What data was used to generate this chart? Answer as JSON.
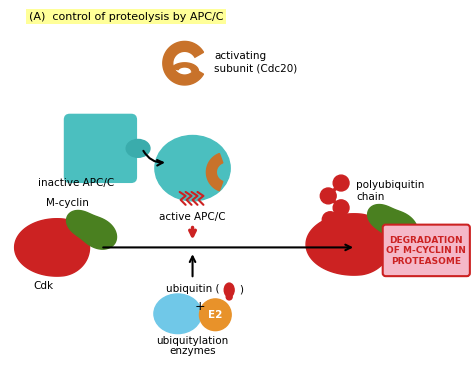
{
  "title": "(A)  control of proteolysis by APC/C",
  "title_highlight_color": "#FFFF99",
  "background_color": "#FFFFFF",
  "colors": {
    "teal": "#4BBFBF",
    "teal_dark": "#3AACAC",
    "orange_brown": "#C8722A",
    "red": "#CC2222",
    "green": "#4A8020",
    "light_blue": "#70C8E8",
    "orange_e2": "#E8922A",
    "pink_box": "#F5B8C8",
    "arrow_red": "#CC2222",
    "arrow_black": "#333333"
  },
  "labels": {
    "inactive": "inactive APC/C",
    "activating_line1": "activating",
    "activating_line2": "subunit (Cdc20)",
    "active": "active APC/C",
    "m_cyclin": "M-cyclin",
    "cdk": "Cdk",
    "ubiquitin": "ubiquitin (",
    "ubiquitylation_line1": "ubiquitylation",
    "ubiquitylation_line2": "enzymes",
    "polyubiquitin_line1": "polyubiquitin",
    "polyubiquitin_line2": "chain",
    "degradation_line1": "DEGRADATION",
    "degradation_line2": "OF M-CYCLIN IN",
    "degradation_line3": "PROTEASOME",
    "e2": "E2",
    "plus": "+"
  }
}
